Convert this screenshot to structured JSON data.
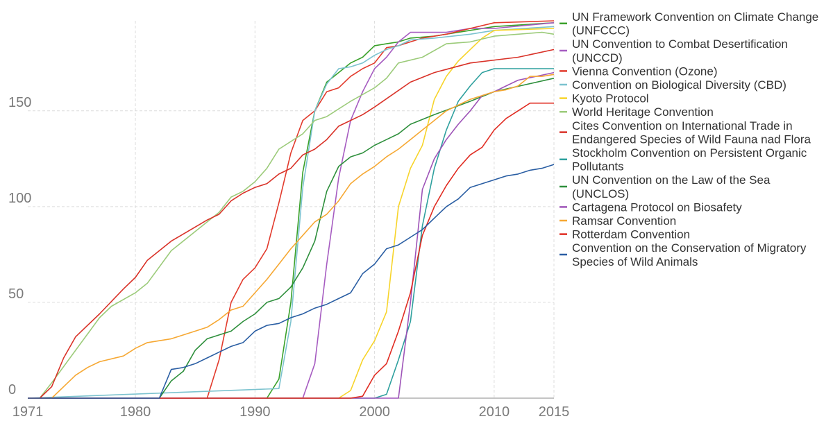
{
  "chart_data": {
    "type": "line",
    "title": "",
    "xlabel": "",
    "ylabel": "",
    "xlim": [
      1971,
      2015
    ],
    "ylim": [
      0,
      197
    ],
    "x_ticks": [
      1971,
      1980,
      1990,
      2000,
      2010,
      2015
    ],
    "y_ticks": [
      0,
      50,
      100,
      150
    ],
    "grid": true,
    "legend_position": "right",
    "series": [
      {
        "name": "UN Framework Convention on Climate Change (UNFCCC)",
        "color": "#3aa12a",
        "x": [
          1971,
          1991,
          1992,
          1993,
          1994,
          1995,
          1996,
          1997,
          1998,
          1999,
          2000,
          2001,
          2002,
          2003,
          2005,
          2010,
          2015
        ],
        "y": [
          0,
          0,
          10,
          50,
          118,
          150,
          165,
          170,
          175,
          178,
          184,
          185,
          186,
          188,
          189,
          194,
          196
        ]
      },
      {
        "name": "UN Convention to Combat Desertification (UNCCD)",
        "color": "#a65cc1",
        "x": [
          1971,
          1994,
          1995,
          1996,
          1997,
          1998,
          1999,
          2000,
          2001,
          2002,
          2003,
          2006,
          2008,
          2010,
          2015
        ],
        "y": [
          0,
          0,
          18,
          70,
          115,
          145,
          160,
          172,
          178,
          186,
          191,
          191,
          193,
          193,
          196
        ]
      },
      {
        "name": "Vienna Convention (Ozone)",
        "color": "#e23a2c",
        "x": [
          1971,
          1986,
          1987,
          1988,
          1989,
          1990,
          1991,
          1992,
          1993,
          1994,
          1995,
          1996,
          1997,
          1998,
          1999,
          2000,
          2001,
          2002,
          2004,
          2006,
          2008,
          2010,
          2015
        ],
        "y": [
          0,
          0,
          20,
          50,
          62,
          68,
          78,
          102,
          128,
          145,
          150,
          160,
          162,
          168,
          172,
          175,
          183,
          184,
          188,
          190,
          193,
          196,
          197
        ]
      },
      {
        "name": "Convention on Biological Diversity (CBD)",
        "color": "#7cc3cf",
        "x": [
          1971,
          1992,
          1993,
          1994,
          1995,
          1996,
          1997,
          1998,
          1999,
          2000,
          2001,
          2002,
          2003,
          2005,
          2008,
          2010,
          2015
        ],
        "y": [
          0,
          5,
          40,
          110,
          150,
          164,
          172,
          173,
          175,
          179,
          182,
          184,
          187,
          188,
          190,
          192,
          194
        ]
      },
      {
        "name": "Kyoto Protocol",
        "color": "#f7d42a",
        "x": [
          1971,
          1997,
          1998,
          1999,
          2000,
          2001,
          2002,
          2003,
          2004,
          2005,
          2006,
          2007,
          2008,
          2009,
          2010,
          2015
        ],
        "y": [
          0,
          0,
          4,
          20,
          30,
          45,
          100,
          120,
          132,
          156,
          168,
          176,
          182,
          188,
          192,
          193
        ]
      },
      {
        "name": "World Heritage Convention",
        "color": "#9ccb7a",
        "x": [
          1971,
          1972,
          1973,
          1975,
          1977,
          1978,
          1980,
          1981,
          1983,
          1985,
          1987,
          1988,
          1989,
          1990,
          1991,
          1992,
          1994,
          1995,
          1996,
          1998,
          2000,
          2001,
          2002,
          2004,
          2006,
          2008,
          2010,
          2012,
          2014,
          2015
        ],
        "y": [
          0,
          0,
          8,
          25,
          42,
          48,
          55,
          60,
          77,
          87,
          97,
          105,
          108,
          113,
          120,
          130,
          138,
          145,
          147,
          155,
          162,
          167,
          175,
          178,
          185,
          186,
          189,
          190,
          191,
          190
        ]
      },
      {
        "name": "Cites Convention on International Trade in Endangered Species of Wild Fauna nad Flora",
        "color": "#d93228",
        "x": [
          1971,
          1972,
          1973,
          1974,
          1975,
          1977,
          1979,
          1980,
          1981,
          1983,
          1986,
          1987,
          1988,
          1989,
          1990,
          1991,
          1992,
          1993,
          1994,
          1995,
          1996,
          1997,
          1998,
          1999,
          2000,
          2003,
          2005,
          2008,
          2012,
          2015
        ],
        "y": [
          0,
          0,
          6,
          21,
          32,
          44,
          57,
          63,
          72,
          82,
          93,
          96,
          103,
          107,
          110,
          112,
          117,
          120,
          127,
          130,
          135,
          142,
          145,
          148,
          152,
          165,
          170,
          175,
          178,
          182
        ]
      },
      {
        "name": "Stockholm Convention on Persistent Organic Pollutants",
        "color": "#2ea09e",
        "x": [
          1971,
          2000,
          2001,
          2002,
          2003,
          2004,
          2005,
          2006,
          2007,
          2008,
          2009,
          2010,
          2015
        ],
        "y": [
          0,
          0,
          2,
          20,
          40,
          90,
          120,
          140,
          155,
          163,
          170,
          172,
          172
        ]
      },
      {
        "name": "UN Convention on the Law of the Sea (UNCLOS)",
        "color": "#2e8f3c",
        "x": [
          1971,
          1982,
          1983,
          1984,
          1985,
          1986,
          1987,
          1988,
          1989,
          1990,
          1991,
          1992,
          1993,
          1994,
          1995,
          1996,
          1997,
          1998,
          1999,
          2000,
          2001,
          2002,
          2003,
          2005,
          2008,
          2010,
          2015
        ],
        "y": [
          0,
          0,
          9,
          14,
          25,
          31,
          33,
          35,
          40,
          44,
          50,
          52,
          58,
          68,
          82,
          108,
          121,
          126,
          128,
          132,
          135,
          138,
          143,
          148,
          155,
          160,
          167
        ]
      },
      {
        "name": "Cartagena Protocol on Biosafety",
        "color": "#9e54b8",
        "x": [
          1971,
          2002,
          2003,
          2004,
          2005,
          2006,
          2007,
          2008,
          2009,
          2010,
          2011,
          2012,
          2015
        ],
        "y": [
          0,
          0,
          50,
          109,
          125,
          135,
          143,
          150,
          158,
          160,
          163,
          166,
          170
        ]
      },
      {
        "name": "Ramsar Convention",
        "color": "#f6a833",
        "x": [
          1971,
          1973,
          1974,
          1975,
          1976,
          1977,
          1979,
          1980,
          1981,
          1982,
          1983,
          1984,
          1985,
          1986,
          1987,
          1988,
          1989,
          1990,
          1991,
          1992,
          1993,
          1994,
          1995,
          1996,
          1997,
          1998,
          1999,
          2000,
          2001,
          2002,
          2003,
          2004,
          2005,
          2006,
          2007,
          2008,
          2009,
          2010,
          2011,
          2012,
          2013,
          2014,
          2015
        ],
        "y": [
          0,
          0,
          6,
          12,
          16,
          19,
          22,
          26,
          29,
          30,
          31,
          33,
          35,
          37,
          41,
          46,
          48,
          55,
          62,
          70,
          78,
          85,
          92,
          96,
          103,
          112,
          117,
          121,
          126,
          130,
          135,
          140,
          145,
          150,
          153,
          156,
          158,
          160,
          161,
          163,
          168,
          168,
          169
        ]
      },
      {
        "name": "Rotterdam Convention",
        "color": "#e02c22",
        "x": [
          1971,
          1998,
          1999,
          2000,
          2001,
          2002,
          2003,
          2004,
          2005,
          2006,
          2007,
          2008,
          2009,
          2010,
          2011,
          2012,
          2013,
          2015
        ],
        "y": [
          0,
          0,
          1,
          12,
          18,
          35,
          55,
          85,
          100,
          111,
          120,
          127,
          131,
          140,
          146,
          150,
          154,
          154
        ]
      },
      {
        "name": "Convention on the Conservation of Migratory Species of Wild Animals",
        "color": "#2a5ea3",
        "x": [
          1971,
          1981,
          1982,
          1983,
          1984,
          1985,
          1986,
          1987,
          1988,
          1989,
          1990,
          1991,
          1992,
          1993,
          1994,
          1995,
          1996,
          1997,
          1998,
          1999,
          2000,
          2001,
          2002,
          2003,
          2004,
          2005,
          2006,
          2007,
          2008,
          2009,
          2010,
          2011,
          2012,
          2013,
          2014,
          2015
        ],
        "y": [
          0,
          0,
          0,
          15,
          16,
          18,
          21,
          24,
          27,
          29,
          35,
          38,
          39,
          42,
          44,
          47,
          49,
          52,
          55,
          65,
          70,
          78,
          80,
          84,
          88,
          94,
          100,
          104,
          110,
          112,
          114,
          116,
          117,
          119,
          120,
          122
        ]
      }
    ]
  }
}
